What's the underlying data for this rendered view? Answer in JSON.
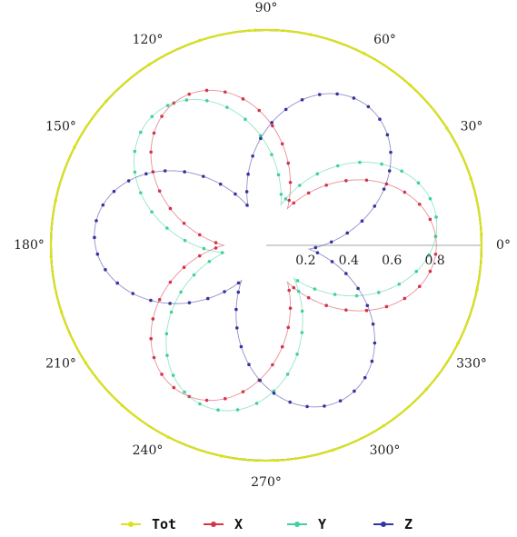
{
  "chart_data": {
    "type": "line",
    "projection": "polar",
    "r_lim": [
      0,
      1
    ],
    "r_ticks": [
      0.2,
      0.4,
      0.6,
      0.8
    ],
    "r_tick_labels": [
      "0.2",
      "0.4",
      "0.6",
      "0.8"
    ],
    "theta_ticks": [
      0,
      30,
      60,
      90,
      120,
      150,
      180,
      210,
      240,
      270,
      300,
      330
    ],
    "theta_tick_labels": [
      "0°",
      "30°",
      "60°",
      "90°",
      "120°",
      "150°",
      "180°",
      "210°",
      "240°",
      "270°",
      "300°",
      "330°"
    ],
    "grid": false,
    "legend_position": "bottom",
    "series": [
      {
        "name": "Tot",
        "color": "#d9e21b",
        "model": "constant",
        "r": 1.0,
        "markers": 24
      },
      {
        "name": "X",
        "color": "#d4344a",
        "model": "petal",
        "r_max": 0.79,
        "petal_angles_deg": [
          0,
          120,
          240
        ],
        "markers": 60
      },
      {
        "name": "Y",
        "color": "#3fd29b",
        "model": "petal",
        "r_max": 0.8,
        "petal_angles_deg": [
          10,
          130,
          250
        ],
        "markers": 56
      },
      {
        "name": "Z",
        "color": "#34349e",
        "model": "petal",
        "r_max": 0.8,
        "petal_angles_deg": [
          55,
          175,
          295
        ],
        "markers": 64
      }
    ]
  },
  "legend": {
    "items": [
      {
        "label": "Tot",
        "color": "#d9e21b"
      },
      {
        "label": "X",
        "color": "#d4344a"
      },
      {
        "label": "Y",
        "color": "#3fd29b"
      },
      {
        "label": "Z",
        "color": "#34349e"
      }
    ]
  }
}
